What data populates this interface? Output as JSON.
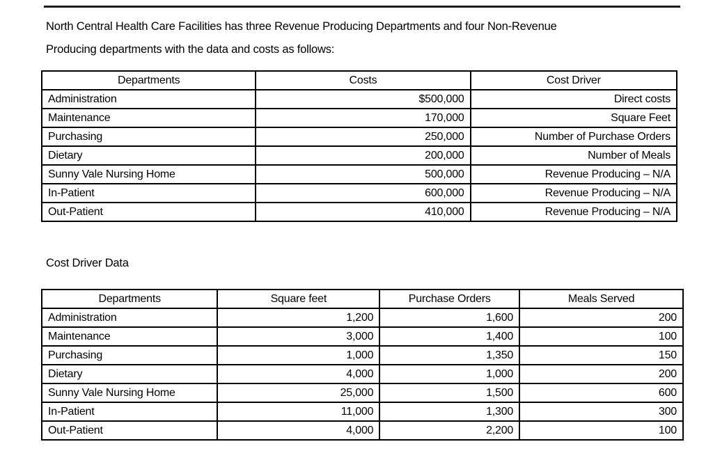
{
  "page": {
    "intro_lines": [
      "North Central Health Care Facilities has three Revenue Producing Departments and four Non-Revenue",
      "Producing departments with the data and costs as follows:"
    ],
    "section_label": "Cost Driver Data"
  },
  "costs_table": {
    "headers": [
      "Departments",
      "Costs",
      "Cost Driver"
    ],
    "rows": [
      [
        "Administration",
        "$500,000",
        "Direct costs"
      ],
      [
        "Maintenance",
        "170,000",
        "Square Feet"
      ],
      [
        "Purchasing",
        "250,000",
        "Number of Purchase Orders"
      ],
      [
        "Dietary",
        "200,000",
        "Number of Meals"
      ],
      [
        "Sunny Vale Nursing Home",
        "500,000",
        "Revenue Producing – N/A"
      ],
      [
        "In-Patient",
        "600,000",
        "Revenue Producing – N/A"
      ],
      [
        "Out-Patient",
        "410,000",
        "Revenue Producing – N/A"
      ]
    ]
  },
  "cost_driver_table": {
    "headers": [
      "Departments",
      "Square feet",
      "Purchase Orders",
      "Meals Served"
    ],
    "rows": [
      [
        "Administration",
        "1,200",
        "1,600",
        "200"
      ],
      [
        "Maintenance",
        "3,000",
        "1,400",
        "100"
      ],
      [
        "Purchasing",
        "1,000",
        "1,350",
        "150"
      ],
      [
        "Dietary",
        "4,000",
        "1,000",
        "200"
      ],
      [
        "Sunny Vale Nursing Home",
        "25,000",
        "1,500",
        "600"
      ],
      [
        "In-Patient",
        "11,000",
        "1,300",
        "300"
      ],
      [
        "Out-Patient",
        "4,000",
        "2,200",
        "100"
      ]
    ]
  }
}
